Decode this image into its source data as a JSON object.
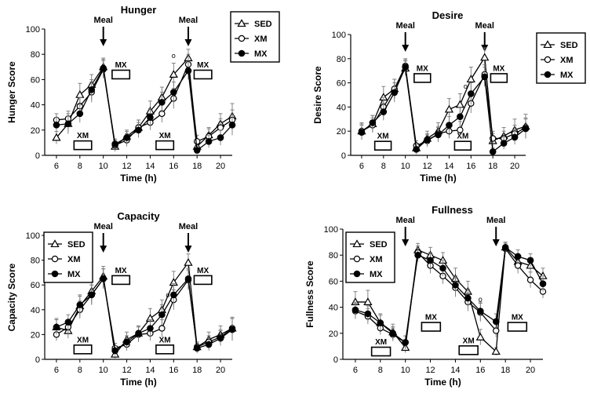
{
  "colors": {
    "ink": "#000000",
    "open_fill": "#ffffff",
    "error_bar": "#777777"
  },
  "chart_data": [
    {
      "type": "line",
      "title": "Hunger",
      "xlabel": "Time (h)",
      "ylabel": "Hunger Score",
      "xlim": [
        5,
        21
      ],
      "ylim": [
        0,
        100
      ],
      "xticks": [
        6,
        8,
        10,
        12,
        14,
        16,
        18,
        20
      ],
      "yticks": [
        0,
        20,
        40,
        60,
        80,
        100
      ],
      "legend": {
        "placement": "top-right",
        "entries": [
          "SED",
          "XM",
          "MX"
        ]
      },
      "meal_label": "Meal",
      "meals_at": [
        10,
        17.25
      ],
      "boxes": [
        {
          "label": "XM",
          "x_range": [
            7.5,
            9.0
          ],
          "y": 8
        },
        {
          "label": "MX",
          "x_range": [
            10.75,
            12.25
          ],
          "y": 64
        },
        {
          "label": "XM",
          "x_range": [
            14.5,
            16.0
          ],
          "y": 8
        },
        {
          "label": "MX",
          "x_range": [
            17.75,
            19.25
          ],
          "y": 64
        }
      ],
      "series": [
        {
          "name": "SED",
          "marker": "triangle",
          "x": [
            6,
            7,
            8,
            9,
            10,
            11,
            12,
            13,
            14,
            15,
            16,
            17.25,
            18,
            19,
            20,
            21
          ],
          "y": [
            14,
            25,
            48,
            56,
            70,
            7,
            15,
            22,
            35,
            46,
            64,
            77,
            7,
            16,
            25,
            31
          ],
          "err": [
            5,
            8,
            9,
            8,
            7,
            4,
            5,
            6,
            8,
            8,
            9,
            7,
            4,
            6,
            8,
            10
          ]
        },
        {
          "name": "XM",
          "marker": "open-circle",
          "x": [
            6,
            7,
            8,
            9,
            10,
            11,
            12,
            13,
            14,
            15,
            16,
            17.25,
            18,
            19,
            20,
            21
          ],
          "y": [
            28,
            29,
            39,
            50,
            68,
            8,
            12,
            22,
            26,
            33,
            45,
            72,
            11,
            15,
            22,
            28
          ],
          "err": [
            5,
            6,
            7,
            8,
            7,
            4,
            5,
            6,
            6,
            7,
            8,
            8,
            5,
            6,
            7,
            8
          ]
        },
        {
          "name": "MX",
          "marker": "filled-circle",
          "x": [
            6,
            7,
            8,
            9,
            10,
            11,
            12,
            13,
            14,
            15,
            16,
            17.25,
            18,
            19,
            20,
            21
          ],
          "y": [
            24,
            25,
            33,
            52,
            69,
            9,
            14,
            20,
            30,
            42,
            50,
            67,
            4,
            11,
            14,
            24
          ],
          "err": [
            6,
            6,
            7,
            8,
            7,
            4,
            5,
            6,
            7,
            8,
            8,
            7,
            3,
            5,
            6,
            8
          ]
        }
      ],
      "annotations": [
        {
          "text": "o",
          "x": 16.0,
          "y": 79
        }
      ]
    },
    {
      "type": "line",
      "title": "Desire",
      "xlabel": "Time (h)",
      "ylabel": "Desire Score",
      "xlim": [
        5,
        21
      ],
      "ylim": [
        0,
        100
      ],
      "xticks": [
        6,
        8,
        10,
        12,
        14,
        16,
        18,
        20
      ],
      "yticks": [
        0,
        20,
        40,
        60,
        80,
        100
      ],
      "legend": {
        "placement": "top-right",
        "entries": [
          "SED",
          "XM",
          "MX"
        ]
      },
      "meal_label": "Meal",
      "meals_at": [
        10,
        17.25
      ],
      "boxes": [
        {
          "label": "XM",
          "x_range": [
            7.2,
            8.7
          ],
          "y": 8
        },
        {
          "label": "MX",
          "x_range": [
            10.8,
            12.3
          ],
          "y": 64
        },
        {
          "label": "XM",
          "x_range": [
            14.5,
            16.0
          ],
          "y": 8
        },
        {
          "label": "MX",
          "x_range": [
            17.8,
            19.3
          ],
          "y": 64
        }
      ],
      "series": [
        {
          "name": "SED",
          "marker": "triangle",
          "x": [
            6,
            7,
            8,
            9,
            10,
            11,
            12,
            13,
            14,
            15,
            16,
            17.25,
            18,
            19,
            20,
            21
          ],
          "y": [
            20,
            26,
            48,
            55,
            72,
            6,
            14,
            20,
            38,
            42,
            63,
            81,
            12,
            16,
            21,
            24
          ],
          "err": [
            7,
            7,
            9,
            8,
            6,
            4,
            6,
            7,
            9,
            9,
            10,
            8,
            6,
            7,
            9,
            10
          ]
        },
        {
          "name": "XM",
          "marker": "open-circle",
          "x": [
            6,
            7,
            8,
            9,
            10,
            11,
            12,
            13,
            14,
            15,
            16,
            17.25,
            18,
            19,
            20,
            21
          ],
          "y": [
            20,
            25,
            40,
            55,
            74,
            8,
            12,
            18,
            20,
            21,
            43,
            67,
            14,
            14,
            18,
            23
          ],
          "err": [
            6,
            6,
            8,
            8,
            6,
            4,
            5,
            6,
            6,
            7,
            8,
            8,
            6,
            6,
            7,
            8
          ]
        },
        {
          "name": "MX",
          "marker": "filled-circle",
          "x": [
            6,
            7,
            8,
            9,
            10,
            11,
            12,
            13,
            14,
            15,
            16,
            17.25,
            18,
            19,
            20,
            21
          ],
          "y": [
            19,
            27,
            36,
            52,
            73,
            5,
            13,
            17,
            25,
            32,
            51,
            65,
            3,
            10,
            15,
            22
          ],
          "err": [
            6,
            6,
            7,
            8,
            6,
            4,
            5,
            6,
            7,
            8,
            9,
            8,
            3,
            5,
            6,
            8
          ]
        }
      ],
      "annotations": [
        {
          "text": "o",
          "x": 15.5,
          "y": 57
        }
      ]
    },
    {
      "type": "line",
      "title": "Capacity",
      "xlabel": "Time (h)",
      "ylabel": "Capacity Score",
      "xlim": [
        5,
        21
      ],
      "ylim": [
        0,
        100
      ],
      "xticks": [
        6,
        8,
        10,
        12,
        14,
        16,
        18,
        20
      ],
      "yticks": [
        0,
        20,
        40,
        60,
        80,
        100
      ],
      "legend": {
        "placement": "top-left",
        "entries": [
          "SED",
          "XM",
          "MX"
        ]
      },
      "meal_label": "Meal",
      "meals_at": [
        10,
        17.25
      ],
      "boxes": [
        {
          "label": "XM",
          "x_range": [
            7.5,
            9.0
          ],
          "y": 8
        },
        {
          "label": "MX",
          "x_range": [
            10.75,
            12.25
          ],
          "y": 64
        },
        {
          "label": "XM",
          "x_range": [
            14.5,
            16.0
          ],
          "y": 8
        },
        {
          "label": "MX",
          "x_range": [
            17.75,
            19.25
          ],
          "y": 64
        }
      ],
      "series": [
        {
          "name": "SED",
          "marker": "triangle",
          "x": [
            6,
            7,
            8,
            9,
            10,
            11,
            12,
            13,
            14,
            15,
            16,
            17.25,
            18,
            19,
            20,
            21
          ],
          "y": [
            26,
            23,
            43,
            55,
            67,
            4,
            16,
            21,
            33,
            40,
            62,
            78,
            10,
            16,
            20,
            25
          ],
          "err": [
            7,
            6,
            8,
            8,
            8,
            4,
            6,
            6,
            8,
            8,
            9,
            7,
            4,
            6,
            7,
            9
          ]
        },
        {
          "name": "XM",
          "marker": "open-circle",
          "x": [
            6,
            7,
            8,
            9,
            10,
            11,
            12,
            13,
            14,
            15,
            16,
            17.25,
            18,
            19,
            20,
            21
          ],
          "y": [
            20,
            26,
            40,
            52,
            65,
            9,
            12,
            20,
            21,
            25,
            48,
            64,
            10,
            14,
            18,
            25
          ],
          "err": [
            5,
            6,
            7,
            8,
            8,
            4,
            5,
            6,
            6,
            7,
            8,
            8,
            4,
            5,
            6,
            8
          ]
        },
        {
          "name": "MX",
          "marker": "filled-circle",
          "x": [
            6,
            7,
            8,
            9,
            10,
            11,
            12,
            13,
            14,
            15,
            16,
            17.25,
            18,
            19,
            20,
            21
          ],
          "y": [
            26,
            30,
            44,
            52,
            65,
            7,
            14,
            21,
            25,
            36,
            52,
            65,
            9,
            12,
            17,
            24
          ],
          "err": [
            6,
            6,
            8,
            8,
            8,
            4,
            5,
            6,
            7,
            8,
            9,
            8,
            4,
            5,
            6,
            9
          ]
        }
      ],
      "annotations": [
        {
          "text": "o",
          "x": 15.5,
          "y": 52
        }
      ]
    },
    {
      "type": "line",
      "title": "Fullness",
      "xlabel": "Time (h)",
      "ylabel": "Fullness Score",
      "xlim": [
        5,
        21
      ],
      "ylim": [
        0,
        100
      ],
      "xticks": [
        6,
        8,
        10,
        12,
        14,
        16,
        18,
        20
      ],
      "yticks": [
        0,
        20,
        40,
        60,
        80,
        100
      ],
      "legend": {
        "placement": "top-left",
        "entries": [
          "SED",
          "XM",
          "MX"
        ]
      },
      "meal_label": "Meal",
      "meals_at": [
        10,
        17.25
      ],
      "boxes": [
        {
          "label": "XM",
          "x_range": [
            7.3,
            8.8
          ],
          "y": 6
        },
        {
          "label": "MX",
          "x_range": [
            11.3,
            12.8
          ],
          "y": 25
        },
        {
          "label": "XM",
          "x_range": [
            14.3,
            15.8
          ],
          "y": 7
        },
        {
          "label": "MX",
          "x_range": [
            18.2,
            19.7
          ],
          "y": 25
        }
      ],
      "series": [
        {
          "name": "SED",
          "marker": "triangle",
          "x": [
            6,
            7,
            8,
            9,
            10,
            11,
            12,
            13,
            14,
            15,
            16,
            17.25,
            18,
            19,
            20,
            21
          ],
          "y": [
            44,
            44,
            28,
            21,
            9,
            84,
            80,
            76,
            62,
            52,
            17,
            6,
            86,
            75,
            72,
            64
          ],
          "err": [
            8,
            9,
            7,
            6,
            4,
            5,
            6,
            6,
            8,
            8,
            6,
            3,
            4,
            6,
            6,
            6
          ]
        },
        {
          "name": "XM",
          "marker": "open-circle",
          "x": [
            6,
            7,
            8,
            9,
            10,
            11,
            12,
            13,
            14,
            15,
            16,
            17.25,
            18,
            19,
            20,
            21
          ],
          "y": [
            37,
            33,
            24,
            19,
            13,
            82,
            72,
            64,
            55,
            44,
            36,
            22,
            85,
            72,
            61,
            52
          ],
          "err": [
            6,
            6,
            5,
            5,
            5,
            5,
            6,
            6,
            7,
            7,
            7,
            5,
            4,
            6,
            6,
            5
          ]
        },
        {
          "name": "MX",
          "marker": "filled-circle",
          "x": [
            6,
            7,
            8,
            9,
            10,
            11,
            12,
            13,
            14,
            15,
            16,
            17.25,
            18,
            19,
            20,
            21
          ],
          "y": [
            38,
            35,
            28,
            20,
            13,
            80,
            76,
            70,
            57,
            47,
            37,
            29,
            86,
            79,
            76,
            58
          ],
          "err": [
            6,
            6,
            6,
            5,
            5,
            5,
            6,
            6,
            7,
            7,
            7,
            6,
            4,
            5,
            5,
            6
          ]
        }
      ],
      "annotations": [
        {
          "text": "o",
          "x": 16.0,
          "y": 46
        }
      ]
    }
  ]
}
